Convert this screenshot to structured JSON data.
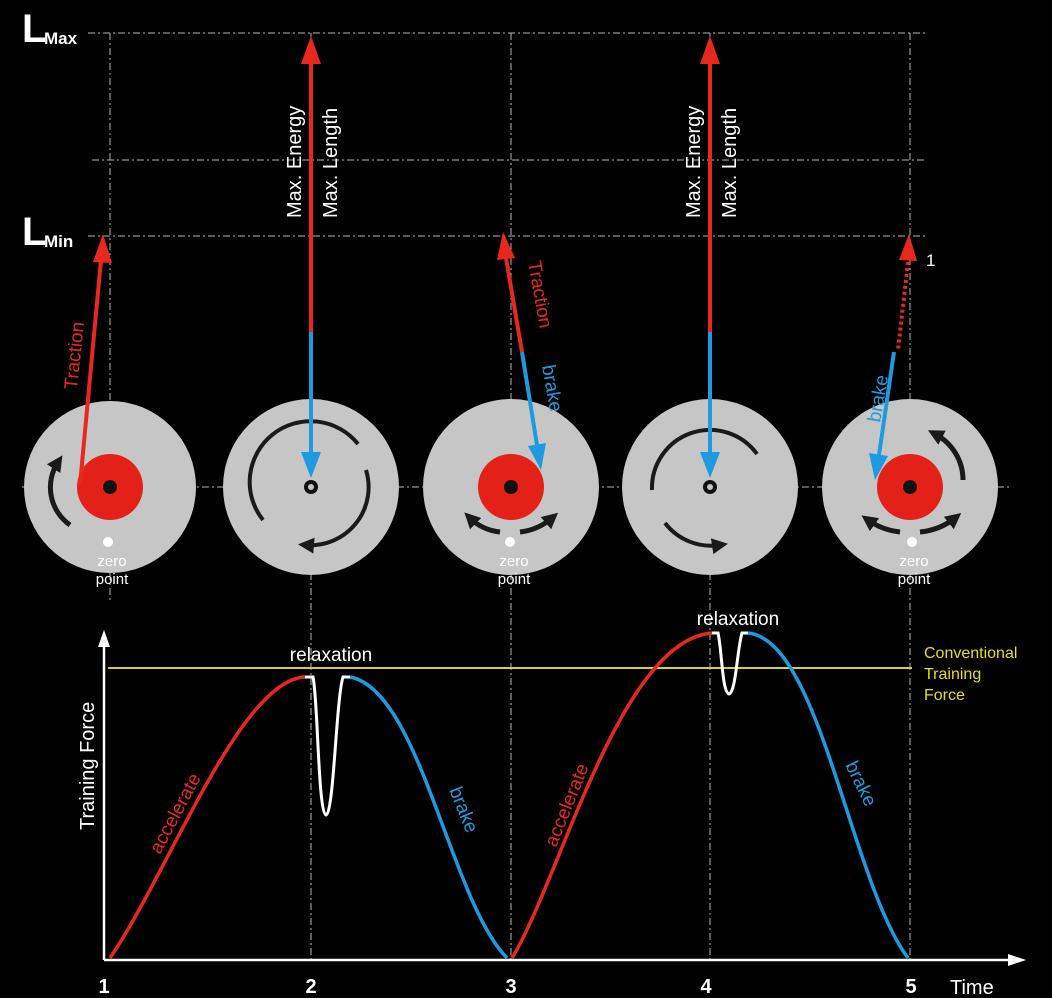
{
  "colors": {
    "background": "#000000",
    "traction_red": "#e8281e",
    "brake_blue": "#1e9be0",
    "relax_white": "#ffffff",
    "reference_yellow": "#d8d41c",
    "disc_gray": "#c6c6c6",
    "hub_red": "#e32119",
    "guide_line": "#b0b0b0"
  },
  "levels": {
    "max": {
      "main": "L",
      "sub": "Max"
    },
    "min": {
      "main": "L",
      "sub": "Min"
    }
  },
  "disc_labels": {
    "traction": "Traction",
    "brake": "brake",
    "max_energy": "Max. Energy",
    "max_length": "Max. Length",
    "zero_point_line1": "zero",
    "zero_point_line2": "point",
    "point_marker": "1"
  },
  "discs": [
    {
      "id": 1,
      "hub": "red",
      "label": "zero point",
      "arrow": "traction",
      "rotation_arrows": "single-counterclockwise"
    },
    {
      "id": 2,
      "hub": "gray",
      "label": "",
      "arrow": "max-energy-length",
      "rotation_arrows": "circular"
    },
    {
      "id": 3,
      "hub": "red",
      "label": "zero point",
      "arrow": "traction-brake",
      "rotation_arrows": "double"
    },
    {
      "id": 4,
      "hub": "gray",
      "label": "",
      "arrow": "max-energy-length",
      "rotation_arrows": "circular"
    },
    {
      "id": 5,
      "hub": "red",
      "label": "zero point",
      "arrow": "brake-dotted",
      "rotation_arrows": "double-plus-clockwise"
    }
  ],
  "chart": {
    "y_axis_label": "Training Force",
    "x_axis_label": "Time",
    "ticks": [
      "1",
      "2",
      "3",
      "4",
      "5"
    ],
    "relaxation_label": "relaxation",
    "accelerate_label": "accelerate",
    "brake_label": "brake",
    "conventional_line1": "Conventional",
    "conventional_line2": "Training",
    "conventional_line3": "Force"
  }
}
